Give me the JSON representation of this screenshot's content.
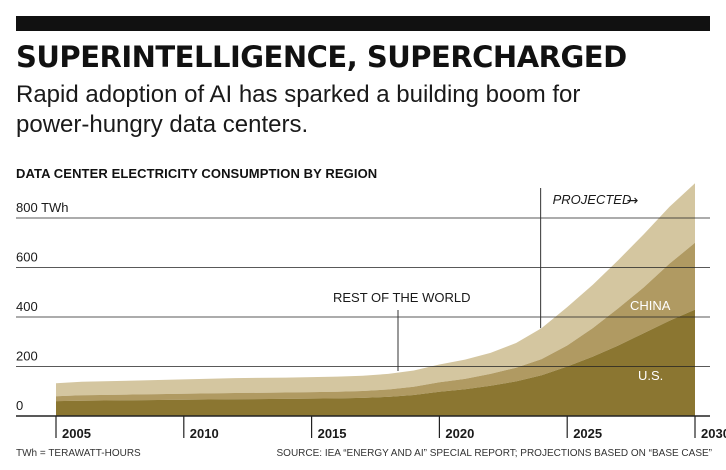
{
  "headline": "SUPERINTELLIGENCE, SUPERCHARGED",
  "dek": "Rapid adoption of AI has sparked a building boom for power-hungry data centers.",
  "footnote_units": "TWh = TERAWATT-HOURS",
  "footnote_source": "SOURCE: IEA “ENERGY AND AI” SPECIAL REPORT; PROJECTIONS BASED ON “BASE CASE”",
  "colors": {
    "rest_of_world": "#d4c6a0",
    "china": "#b09a62",
    "us": "#8b7631",
    "axis": "#222222",
    "gridline": "#222222"
  },
  "chart_data": {
    "type": "area",
    "stacked": true,
    "title": "DATA CENTER ELECTRICITY CONSUMPTION BY REGION",
    "y_unit": "TWh",
    "ylim": [
      0,
      900
    ],
    "xlim": [
      2005,
      2030
    ],
    "y_ticks": [
      {
        "value": 800,
        "label": "800 TWh"
      },
      {
        "value": 600,
        "label": "600"
      },
      {
        "value": 400,
        "label": "400"
      },
      {
        "value": 200,
        "label": "200"
      },
      {
        "value": 0,
        "label": "0"
      }
    ],
    "x_ticks": [
      2005,
      2010,
      2015,
      2020,
      2025,
      2030
    ],
    "x_tick_labels": [
      "2005",
      "2010",
      "2015",
      "2020",
      "2025",
      "2030"
    ],
    "x": [
      2005,
      2006,
      2008,
      2010,
      2012,
      2014,
      2016,
      2017,
      2018,
      2019,
      2020,
      2021,
      2022,
      2023,
      2024,
      2025,
      2026,
      2027,
      2028,
      2029,
      2030
    ],
    "series": [
      {
        "name": "U.S.",
        "label": "U.S.",
        "values": [
          60,
          62,
          64,
          66,
          68,
          69,
          71,
          73,
          77,
          85,
          98,
          108,
          122,
          140,
          165,
          200,
          240,
          285,
          335,
          385,
          430
        ]
      },
      {
        "name": "China",
        "label": "CHINA",
        "values": [
          20,
          22,
          23,
          24,
          25,
          26,
          27,
          28,
          30,
          33,
          38,
          42,
          48,
          55,
          65,
          85,
          115,
          150,
          185,
          230,
          270
        ]
      },
      {
        "name": "Rest of the world",
        "label": "REST OF THE WORLD",
        "values": [
          52,
          54,
          56,
          58,
          60,
          60,
          61,
          62,
          63,
          66,
          72,
          78,
          85,
          100,
          125,
          155,
          175,
          195,
          215,
          230,
          240
        ]
      }
    ],
    "projection_start": 2024,
    "projection_label": "PROJECTED",
    "projection_arrow": "→"
  }
}
